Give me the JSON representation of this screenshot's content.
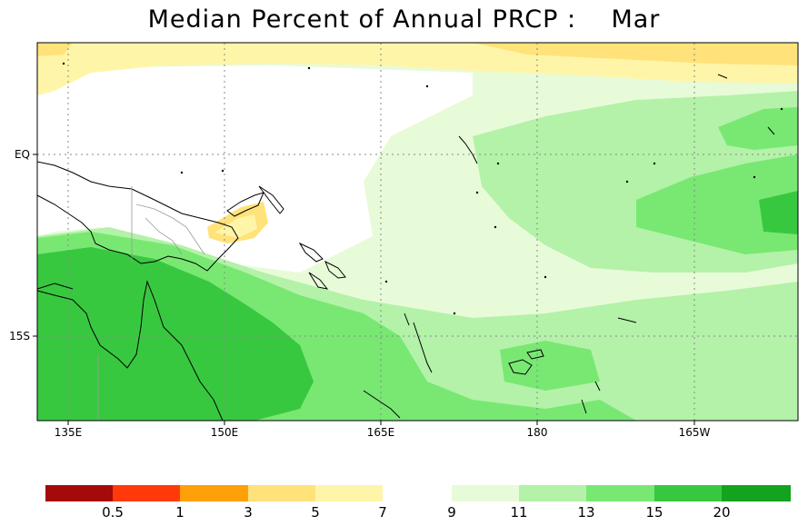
{
  "title": "Median Percent of Annual PRCP :    Mar",
  "map": {
    "lat_labels": [
      "EQ",
      "15S"
    ],
    "lon_labels": [
      "135E",
      "150E",
      "165E",
      "180",
      "165W"
    ],
    "colors": {
      "band_7": "#fff5a8",
      "band_5": "#ffe27a",
      "white": "#ffffff",
      "band_9": "#e8fbd8",
      "band_11": "#b3f2a8",
      "band_13": "#78e873",
      "band_15": "#38c840",
      "band_20": "#14a31e",
      "coast": "#000000",
      "border": "#9a9a9a"
    }
  },
  "colorbar": {
    "left": {
      "colors": [
        "#a50a0a",
        "#ff3a0a",
        "#ffa00a",
        "#ffe27a",
        "#fff5a8"
      ],
      "labels": [
        "0.5",
        "1",
        "3",
        "5",
        "7"
      ]
    },
    "right": {
      "colors": [
        "#e8fbd8",
        "#b3f2a8",
        "#78e873",
        "#38c840",
        "#14a31e"
      ],
      "labels": [
        "9",
        "11",
        "13",
        "15",
        "20"
      ]
    }
  }
}
